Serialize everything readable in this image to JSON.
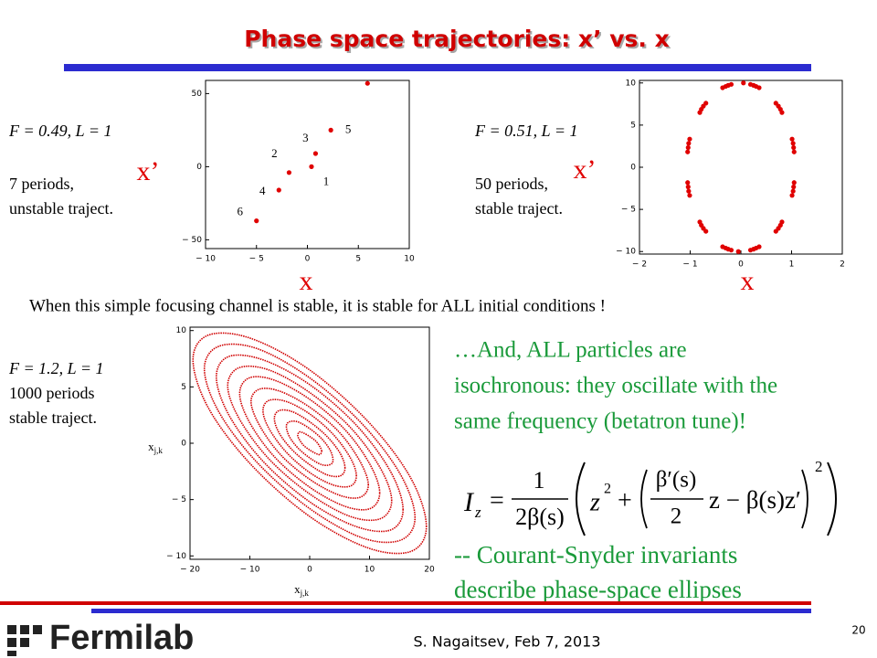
{
  "title": "Phase space trajectories: x’ vs. x",
  "statement": "When this simple focusing channel is stable, it is stable for ALL initial conditions !",
  "remark": {
    "lines": [
      "…And, ALL particles are",
      "isochronous: they oscillate with the",
      "same frequency (betatron tune)!"
    ]
  },
  "formula": {
    "lhs": "I",
    "lhs_sub": "z",
    "equals": "=",
    "frac_num": "1",
    "frac_den": "2β(s)",
    "term1": "z",
    "term1_sup": "2",
    "plus": "+",
    "inner_num": "β′(s)",
    "inner_den": "2",
    "inner_rest": "z − β(s)z′",
    "outer_sup": "2"
  },
  "conclusion": {
    "lines": [
      "-- Courant-Snyder invariants",
      "describe phase-space ellipses"
    ]
  },
  "footer": {
    "author": "S. Nagaitsev, Feb 7, 2013",
    "page": "20",
    "logo": "Fermilab"
  },
  "chart_data": [
    {
      "type": "scatter",
      "params": "F = 0.49, L = 1",
      "notes": [
        "7 periods,",
        "unstable traject."
      ],
      "xlabel": "x",
      "ylabel": "x’",
      "color": "#e00000",
      "xlim": [
        -10,
        10
      ],
      "ylim": [
        -56,
        59
      ],
      "xticks": [
        {
          "value": -10,
          "label": "− 10"
        },
        {
          "value": -5,
          "label": "− 5"
        },
        0,
        5,
        10
      ],
      "yticks": [
        {
          "value": -50,
          "label": "− 50"
        },
        0,
        50
      ],
      "x": [
        0.4,
        -1.8,
        0.8,
        -2.8,
        2.3,
        -5.0,
        5.9
      ],
      "y": [
        0,
        -4,
        9,
        -16,
        25,
        -37,
        57
      ],
      "point_labels": [
        "1",
        "2",
        "3",
        "4",
        "5",
        "6",
        null
      ]
    },
    {
      "type": "scatter",
      "params": "F = 0.51, L = 1",
      "notes": [
        "50 periods,",
        "stable traject."
      ],
      "xlabel": "x",
      "ylabel": "x’",
      "color": "#e00000",
      "xlim": [
        -2,
        2
      ],
      "ylim": [
        -10.3,
        10.3
      ],
      "xticks": [
        {
          "value": -2,
          "label": "− 2"
        },
        {
          "value": -1,
          "label": "− 1"
        },
        0,
        1,
        2
      ],
      "yticks": [
        {
          "value": -10,
          "label": "− 10"
        },
        {
          "value": -5,
          "label": "− 5"
        },
        0,
        5,
        10
      ],
      "x": [
        1.05,
        1.04,
        1.03,
        1.01,
        0.81,
        0.78,
        0.74,
        0.69,
        0.36,
        0.3,
        0.25,
        0.19,
        -1.05,
        -1.04,
        -1.03,
        -1.01,
        -0.81,
        -0.78,
        -0.74,
        -0.69,
        -0.36,
        -0.3,
        -0.25,
        -0.19,
        -1.05,
        -1.04,
        -1.03,
        -1.01,
        -0.81,
        -0.78,
        -0.74,
        -0.69,
        -0.36,
        -0.3,
        -0.25,
        -0.19,
        1.05,
        1.04,
        1.03,
        1.01,
        0.81,
        0.78,
        0.74,
        0.69,
        0.36,
        0.3,
        0.25,
        0.19,
        0.05,
        -0.05
      ],
      "y": [
        1.82,
        2.33,
        2.84,
        3.34,
        6.49,
        6.88,
        7.25,
        7.6,
        9.43,
        9.59,
        9.72,
        9.83,
        1.82,
        2.33,
        2.84,
        3.34,
        6.49,
        6.88,
        7.25,
        7.6,
        9.43,
        9.59,
        9.72,
        9.83,
        -1.82,
        -2.33,
        -2.84,
        -3.34,
        -6.49,
        -6.88,
        -7.25,
        -7.6,
        -9.43,
        -9.59,
        -9.72,
        -9.83,
        -1.82,
        -2.33,
        -2.84,
        -3.34,
        -6.49,
        -6.88,
        -7.25,
        -7.6,
        -9.43,
        -9.59,
        -9.72,
        -9.83,
        10,
        -10
      ]
    },
    {
      "type": "line",
      "closed": true,
      "params": "F = 1.2, L = 1",
      "notes": [
        "1000 periods",
        "stable traject."
      ],
      "xlabel": "x",
      "xlabel_sub": "j,k",
      "ylabel": "x",
      "ylabel_sub": "j,k",
      "color": "#d00000",
      "xlim": [
        -20,
        20
      ],
      "ylim": [
        -10.3,
        10.3
      ],
      "xticks": [
        {
          "value": -20,
          "label": "− 20"
        },
        {
          "value": -10,
          "label": "− 10"
        },
        0,
        10,
        20
      ],
      "yticks": [
        {
          "value": -10,
          "label": "− 10"
        },
        {
          "value": -5,
          "label": "− 5"
        },
        0,
        5,
        10
      ],
      "series": [
        {
          "x": [
            19.5,
            16.9,
            9.8,
            0,
            -9.8,
            -16.9,
            -19.5,
            -16.9,
            -9.8,
            0,
            9.8,
            16.9
          ],
          "y": [
            -7.4,
            -3.1,
            1.9,
            6.5,
            9.3,
            9.6,
            7.4,
            3.1,
            -1.9,
            -6.5,
            -9.3,
            -9.6
          ]
        },
        {
          "x": [
            17.6,
            15.2,
            8.8,
            0,
            -8.8,
            -15.2,
            -17.6,
            -15.2,
            -8.8,
            0,
            8.8,
            15.2
          ],
          "y": [
            -6.6,
            -2.8,
            1.7,
            5.8,
            8.4,
            8.6,
            6.6,
            2.8,
            -1.7,
            -5.8,
            -8.4,
            -8.6
          ]
        },
        {
          "x": [
            15.6,
            13.5,
            7.8,
            0,
            -7.8,
            -13.5,
            -15.6,
            -13.5,
            -7.8,
            0,
            7.8,
            13.5
          ],
          "y": [
            -5.9,
            -2.5,
            1.6,
            5.2,
            7.4,
            7.7,
            5.9,
            2.5,
            -1.6,
            -5.2,
            -7.4,
            -7.7
          ]
        },
        {
          "x": [
            13.7,
            11.8,
            6.8,
            0,
            -6.8,
            -11.8,
            -13.7,
            -11.8,
            -6.8,
            0,
            6.8,
            11.8
          ],
          "y": [
            -5.1,
            -2.2,
            1.4,
            4.5,
            6.5,
            6.7,
            5.1,
            2.2,
            -1.4,
            -4.5,
            -6.5,
            -6.7
          ]
        },
        {
          "x": [
            11.7,
            10.1,
            5.9,
            0,
            -5.9,
            -10.1,
            -11.7,
            -10.1,
            -5.9,
            0,
            5.9,
            10.1
          ],
          "y": [
            -4.4,
            -1.9,
            1.2,
            3.9,
            5.6,
            5.8,
            4.4,
            1.9,
            -1.2,
            -3.9,
            -5.6,
            -5.8
          ]
        },
        {
          "x": [
            9.8,
            8.4,
            4.9,
            0,
            -4.9,
            -8.4,
            -9.8,
            -8.4,
            -4.9,
            0,
            4.9,
            8.4
          ],
          "y": [
            -3.7,
            -1.6,
            1.0,
            3.2,
            4.6,
            4.8,
            3.7,
            1.6,
            -1.0,
            -3.2,
            -4.6,
            -4.8
          ]
        },
        {
          "x": [
            7.8,
            6.8,
            3.9,
            0,
            -3.9,
            -6.8,
            -7.8,
            -6.8,
            -3.9,
            0,
            3.9,
            6.8
          ],
          "y": [
            -2.9,
            -1.3,
            0.8,
            2.6,
            3.7,
            3.8,
            2.9,
            1.3,
            -0.8,
            -2.6,
            -3.7,
            -3.8
          ]
        },
        {
          "x": [
            5.9,
            5.1,
            2.9,
            0,
            -2.9,
            -5.1,
            -5.9,
            -5.1,
            -2.9,
            0,
            2.9,
            5.1
          ],
          "y": [
            -2.2,
            -0.9,
            0.6,
            1.9,
            2.8,
            2.9,
            2.2,
            0.9,
            -0.6,
            -1.9,
            -2.8,
            -2.9
          ]
        },
        {
          "x": [
            3.9,
            3.4,
            2.0,
            0,
            -2.0,
            -3.4,
            -3.9,
            -3.4,
            -2.0,
            0,
            2.0,
            3.4
          ],
          "y": [
            -1.5,
            -0.6,
            0.4,
            1.3,
            1.9,
            1.9,
            1.5,
            0.6,
            -0.4,
            -1.3,
            -1.9,
            -1.9
          ]
        },
        {
          "x": [
            2.0,
            1.7,
            1.0,
            0,
            -1.0,
            -1.7,
            -2.0,
            -1.7,
            -1.0,
            0,
            1.0,
            1.7
          ],
          "y": [
            -0.7,
            -0.3,
            0.2,
            0.6,
            0.9,
            1.0,
            0.7,
            0.3,
            -0.2,
            -0.6,
            -0.9,
            -1.0
          ]
        }
      ]
    }
  ]
}
